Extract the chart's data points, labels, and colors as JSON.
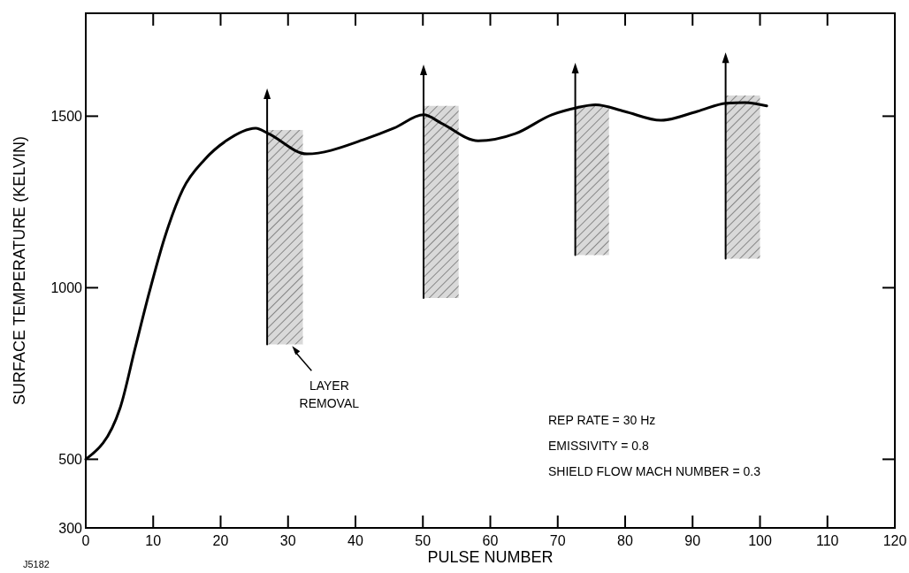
{
  "chart_data": {
    "type": "line",
    "xlabel": "PULSE NUMBER",
    "ylabel": "SURFACE TEMPERATURE (KELVIN)",
    "xlim": [
      0,
      120
    ],
    "xticks": [
      0,
      10,
      20,
      30,
      40,
      50,
      60,
      70,
      80,
      90,
      100,
      110,
      120
    ],
    "ylim": [
      300,
      1800
    ],
    "yticks": [
      300,
      500,
      1000,
      1500
    ],
    "grid": false,
    "line_style": "solid",
    "series": [
      {
        "color": "#000000",
        "x": [
          0,
          5.1,
          7.3,
          9.4,
          11.7,
          14.4,
          17.6,
          20.8,
          25.2,
          27.1,
          32.8,
          41.4,
          45.7,
          50.1,
          52.8,
          58.2,
          63.7,
          69.1,
          72.9,
          75.6,
          79.9,
          85.3,
          90.7,
          95,
          97.8,
          101
        ],
        "values": [
          500,
          650,
          822,
          985,
          1146,
          1287,
          1373,
          1428,
          1465,
          1449,
          1390,
          1433,
          1465,
          1504,
          1479,
          1428,
          1449,
          1504,
          1525,
          1533,
          1514,
          1488,
          1514,
          1538,
          1540,
          1530
        ]
      },
      {
        "type": "area",
        "color": "#d0d0d0",
        "x": [
          26.9,
          32.2
        ],
        "values": [
          null,
          null
        ],
        "upper": [
          1460,
          1460
        ],
        "lower": [
          835,
          835
        ]
      },
      {
        "type": "area",
        "color": "#d0d0d0",
        "x": [
          50.1,
          55.3
        ],
        "values": [
          null,
          null
        ],
        "upper": [
          1530,
          1530
        ],
        "lower": [
          970,
          970
        ]
      },
      {
        "type": "area",
        "color": "#d0d0d0",
        "x": [
          72.6,
          77.6
        ],
        "values": [
          null,
          null
        ],
        "upper": [
          1530,
          1530
        ],
        "lower": [
          1095,
          1095
        ]
      },
      {
        "type": "area",
        "color": "#d0d0d0",
        "x": [
          94.9,
          100
        ],
        "values": [
          null,
          null
        ],
        "upper": [
          1560,
          1560
        ],
        "lower": [
          1085,
          1085
        ]
      },
      {
        "color": "#000000",
        "marker": "triangle",
        "x": [
          26.9,
          26.9
        ],
        "values": [
          835,
          1555
        ]
      },
      {
        "color": "#000000",
        "marker": "triangle",
        "x": [
          50.1,
          50.1
        ],
        "values": [
          970,
          1625
        ]
      },
      {
        "color": "#000000",
        "marker": "triangle",
        "x": [
          72.6,
          72.6
        ],
        "values": [
          1095,
          1630
        ]
      },
      {
        "color": "#000000",
        "marker": "triangle",
        "x": [
          94.9,
          94.9
        ],
        "values": [
          1085,
          1660
        ]
      }
    ],
    "annotations": [
      {
        "text": "LAYER\nREMOVAL",
        "x": 30.6,
        "y": 830
      },
      "REP RATE = 30 Hz",
      "EMISSIVITY = 0.8",
      "SHIELD FLOW MACH NUMBER = 0.3",
      "J5182"
    ]
  }
}
